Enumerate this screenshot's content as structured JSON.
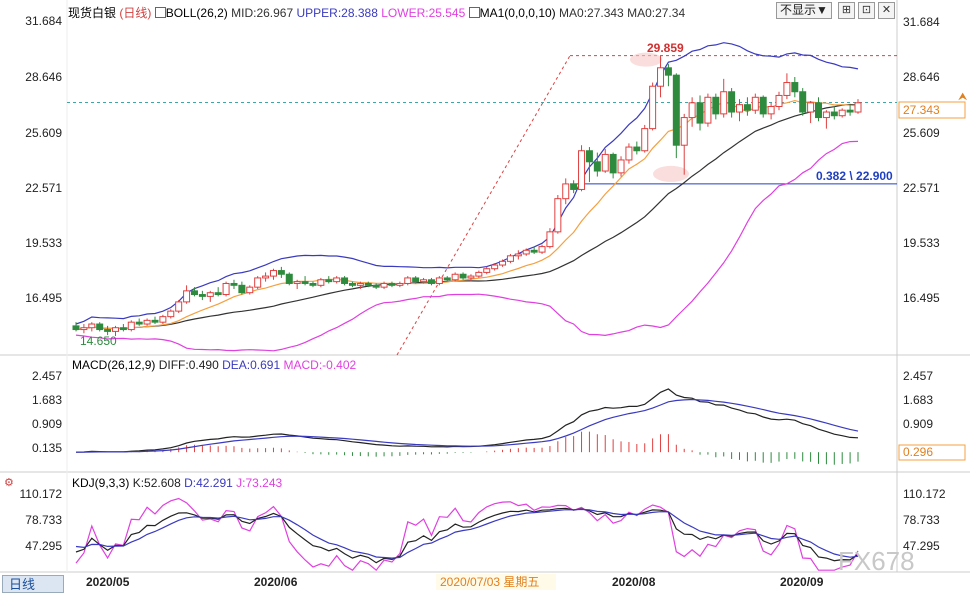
{
  "main_header": {
    "symbol": "现货白银",
    "period": "日线",
    "boll": "BOLL(26,2)",
    "mid": "MID:26.967",
    "upper": "UPPER:28.388",
    "lower": "LOWER:25.545",
    "ma1": "MA1(0,0,0,10)",
    "ma0_27343": "MA0:27.343",
    "ma0_2734": "MA0:27.34"
  },
  "toolbar": {
    "display_label": "不显示▼",
    "btn1": "⊞",
    "btn2": "⊡",
    "btn3": "✕"
  },
  "annotations": {
    "high_label": "29.859",
    "low_label": "14.650",
    "fib_label": "0.382 \\ 22.900",
    "price_tag": "27.343",
    "date_tip": "2020/07/03 星期五",
    "watermark": "FX678"
  },
  "macd_header": {
    "name": "MACD(26,12,9)",
    "diff": "DIFF:0.490",
    "dea": "DEA:0.691",
    "macd": "MACD:-0.402"
  },
  "macd_tag": "0.296",
  "kdj_header": {
    "name": "KDJ(9,3,3)",
    "k": "K:52.608",
    "d": "D:42.291",
    "j": "J:73.243"
  },
  "bottom_tab": "日线",
  "x_labels": [
    "2020/05",
    "2020/06",
    "2020/07/03 星期五",
    "2020/08",
    "2020/09"
  ],
  "chart_data": [
    {
      "type": "candlestick",
      "title": "现货白银 日线",
      "y_ticks": [
        31.684,
        28.646,
        25.609,
        22.571,
        19.533,
        16.495
      ],
      "ylim": [
        13.6,
        32.0
      ],
      "x_labels": [
        "2020/05",
        "2020/06",
        "2020/08",
        "2020/09"
      ],
      "ohlc": [
        [
          15.2,
          15.4,
          14.9,
          15.0
        ],
        [
          15.0,
          15.3,
          14.8,
          15.1
        ],
        [
          15.1,
          15.4,
          14.9,
          15.3
        ],
        [
          15.3,
          15.4,
          14.9,
          15.0
        ],
        [
          15.0,
          15.2,
          14.7,
          14.9
        ],
        [
          14.9,
          15.2,
          14.65,
          15.1
        ],
        [
          15.1,
          15.3,
          14.9,
          15.0
        ],
        [
          15.0,
          15.5,
          14.9,
          15.4
        ],
        [
          15.4,
          15.6,
          15.2,
          15.3
        ],
        [
          15.3,
          15.6,
          15.2,
          15.5
        ],
        [
          15.5,
          15.7,
          15.3,
          15.4
        ],
        [
          15.4,
          15.8,
          15.3,
          15.7
        ],
        [
          15.7,
          16.1,
          15.6,
          16.0
        ],
        [
          16.0,
          16.6,
          15.9,
          16.5
        ],
        [
          16.5,
          17.4,
          16.4,
          17.1
        ],
        [
          17.1,
          17.3,
          16.8,
          16.9
        ],
        [
          16.9,
          17.1,
          16.6,
          16.8
        ],
        [
          16.8,
          17.1,
          16.5,
          17.0
        ],
        [
          17.0,
          17.3,
          16.8,
          16.9
        ],
        [
          16.9,
          17.6,
          16.8,
          17.5
        ],
        [
          17.5,
          17.7,
          17.2,
          17.4
        ],
        [
          17.4,
          17.6,
          16.9,
          17.0
        ],
        [
          17.0,
          17.4,
          16.9,
          17.3
        ],
        [
          17.3,
          17.9,
          17.2,
          17.8
        ],
        [
          17.8,
          18.1,
          17.6,
          17.9
        ],
        [
          17.9,
          18.3,
          17.7,
          18.2
        ],
        [
          18.2,
          18.4,
          17.8,
          18.0
        ],
        [
          18.0,
          18.1,
          17.4,
          17.5
        ],
        [
          17.5,
          17.7,
          17.2,
          17.6
        ],
        [
          17.6,
          17.9,
          17.4,
          17.5
        ],
        [
          17.5,
          17.6,
          17.3,
          17.4
        ],
        [
          17.4,
          17.8,
          17.3,
          17.7
        ],
        [
          17.7,
          17.9,
          17.5,
          17.6
        ],
        [
          17.6,
          17.9,
          17.5,
          17.8
        ],
        [
          17.8,
          17.9,
          17.4,
          17.5
        ],
        [
          17.5,
          17.6,
          17.3,
          17.4
        ],
        [
          17.4,
          17.6,
          17.2,
          17.5
        ],
        [
          17.5,
          17.6,
          17.3,
          17.4
        ],
        [
          17.4,
          17.5,
          17.2,
          17.3
        ],
        [
          17.3,
          17.6,
          17.2,
          17.5
        ],
        [
          17.5,
          17.6,
          17.3,
          17.4
        ],
        [
          17.4,
          17.6,
          17.3,
          17.5
        ],
        [
          17.5,
          17.9,
          17.4,
          17.8
        ],
        [
          17.8,
          17.9,
          17.5,
          17.6
        ],
        [
          17.6,
          17.8,
          17.5,
          17.7
        ],
        [
          17.7,
          17.8,
          17.4,
          17.5
        ],
        [
          17.5,
          17.9,
          17.4,
          17.8
        ],
        [
          17.8,
          17.9,
          17.6,
          17.7
        ],
        [
          17.7,
          18.1,
          17.6,
          18.0
        ],
        [
          18.0,
          18.1,
          17.7,
          17.8
        ],
        [
          17.8,
          18.0,
          17.6,
          17.9
        ],
        [
          17.9,
          18.2,
          17.8,
          18.1
        ],
        [
          18.1,
          18.4,
          18.0,
          18.3
        ],
        [
          18.3,
          18.6,
          18.2,
          18.5
        ],
        [
          18.5,
          18.8,
          18.4,
          18.7
        ],
        [
          18.7,
          19.1,
          18.6,
          19.0
        ],
        [
          19.0,
          19.3,
          18.8,
          19.1
        ],
        [
          19.1,
          19.4,
          19.0,
          19.3
        ],
        [
          19.3,
          19.5,
          19.1,
          19.2
        ],
        [
          19.2,
          19.6,
          19.1,
          19.5
        ],
        [
          19.5,
          20.5,
          19.4,
          20.3
        ],
        [
          20.3,
          22.3,
          20.2,
          22.1
        ],
        [
          22.1,
          23.2,
          21.8,
          22.9
        ],
        [
          22.9,
          23.1,
          22.4,
          22.6
        ],
        [
          22.6,
          25.0,
          22.5,
          24.7
        ],
        [
          24.7,
          24.9,
          23.0,
          24.1
        ],
        [
          24.1,
          24.6,
          23.3,
          23.6
        ],
        [
          23.6,
          24.8,
          23.5,
          24.5
        ],
        [
          24.5,
          24.6,
          23.2,
          23.5
        ],
        [
          23.5,
          24.4,
          23.3,
          24.2
        ],
        [
          24.2,
          25.1,
          24.0,
          24.9
        ],
        [
          24.9,
          25.2,
          24.5,
          24.7
        ],
        [
          24.7,
          26.1,
          24.6,
          25.9
        ],
        [
          25.9,
          28.4,
          25.8,
          28.2
        ],
        [
          28.2,
          29.86,
          27.6,
          29.2
        ],
        [
          29.2,
          29.4,
          28.2,
          28.8
        ],
        [
          28.8,
          28.9,
          24.3,
          25.0
        ],
        [
          25.0,
          26.7,
          23.4,
          26.5
        ],
        [
          26.5,
          27.6,
          26.0,
          27.3
        ],
        [
          27.3,
          27.7,
          25.8,
          26.2
        ],
        [
          26.2,
          27.8,
          26.0,
          27.6
        ],
        [
          27.6,
          27.8,
          26.4,
          26.7
        ],
        [
          26.7,
          28.6,
          26.5,
          27.9
        ],
        [
          27.9,
          28.1,
          26.5,
          26.8
        ],
        [
          26.8,
          27.5,
          26.3,
          27.2
        ],
        [
          27.2,
          27.6,
          26.6,
          26.9
        ],
        [
          26.9,
          27.8,
          26.7,
          27.6
        ],
        [
          27.6,
          27.7,
          26.5,
          26.7
        ],
        [
          26.7,
          27.3,
          26.4,
          27.1
        ],
        [
          27.1,
          27.9,
          26.9,
          27.7
        ],
        [
          27.7,
          28.9,
          27.5,
          28.4
        ],
        [
          28.4,
          28.7,
          27.6,
          27.9
        ],
        [
          27.9,
          28.1,
          26.6,
          26.8
        ],
        [
          26.8,
          27.4,
          26.2,
          27.3
        ],
        [
          27.3,
          27.6,
          26.3,
          26.5
        ],
        [
          26.5,
          26.9,
          25.9,
          26.8
        ],
        [
          26.8,
          27.1,
          26.4,
          26.6
        ],
        [
          26.6,
          27.0,
          26.5,
          26.9
        ],
        [
          26.9,
          27.2,
          26.6,
          26.8
        ],
        [
          26.8,
          27.5,
          26.7,
          27.3
        ]
      ]
    },
    {
      "type": "line",
      "title": "MACD(26,12,9)",
      "y_ticks": [
        2.457,
        1.683,
        0.909,
        0.135
      ],
      "values": {
        "DIFF": 0.49,
        "DEA": 0.691,
        "MACD": -0.402
      }
    },
    {
      "type": "line",
      "title": "KDJ(9,3,3)",
      "y_ticks": [
        110.172,
        78.733,
        47.295
      ],
      "values": {
        "K": 52.608,
        "D": 42.291,
        "J": 73.243
      }
    }
  ],
  "colors": {
    "up": "#e04040",
    "down": "#2e8b3e",
    "boll_upper": "#3a3ac0",
    "boll_lower": "#e040e0",
    "ma": "#f5a040",
    "mid": "#333333",
    "dashed_red": "#e04040",
    "dashed_cyan": "#3aa8a8",
    "fib": "#2040c0"
  }
}
